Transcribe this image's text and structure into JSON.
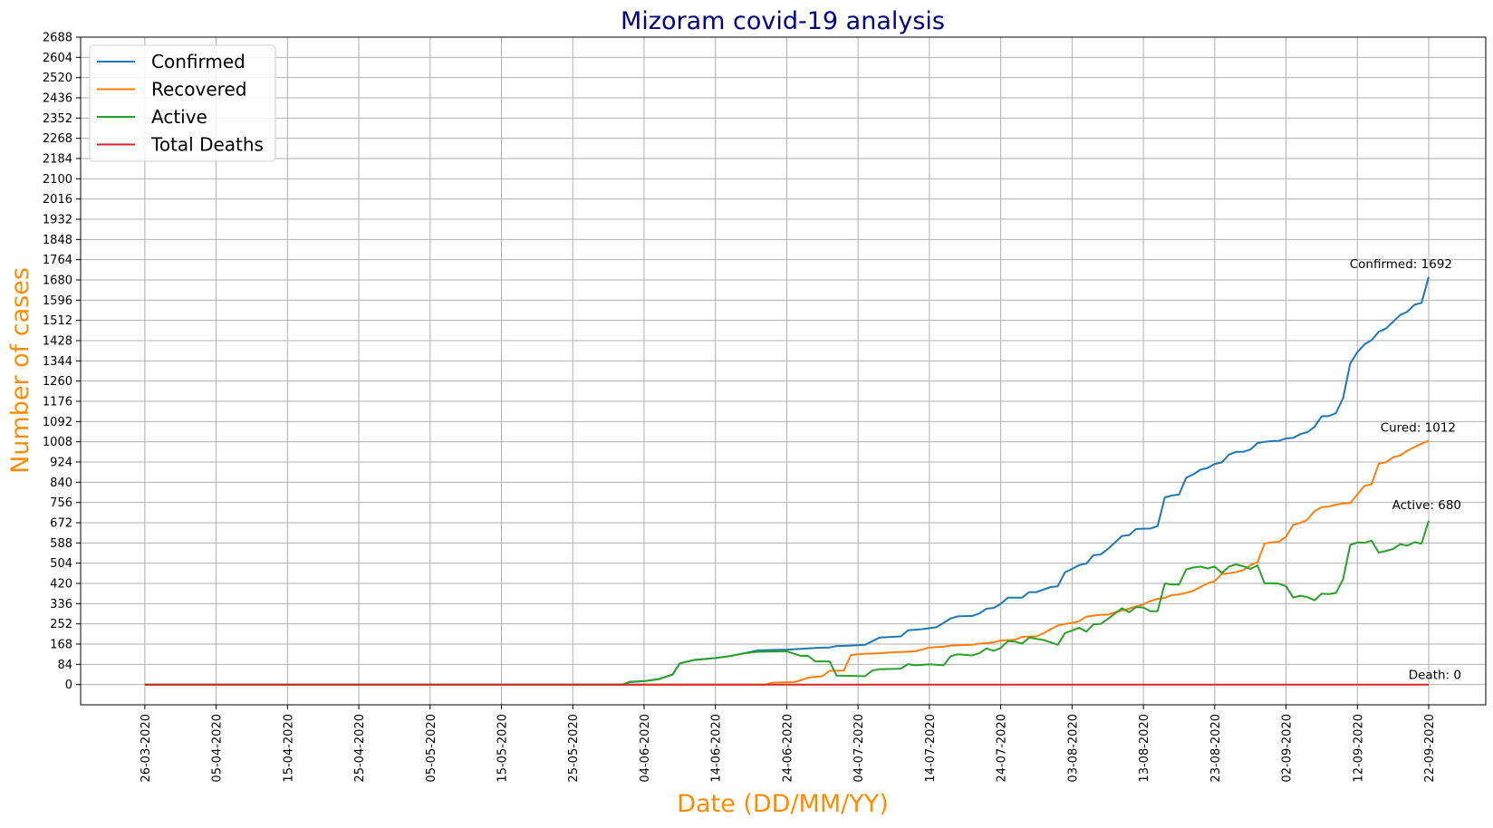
{
  "chart_data": {
    "type": "line",
    "title": "Mizoram covid-19 analysis",
    "xlabel": "Date (DD/MM/YY)",
    "ylabel": "Number of cases",
    "x_start": "26-03-2020",
    "x_end": "22-09-2020",
    "xlim": [
      "17-03-2020",
      "30-09-2020"
    ],
    "x_ticks": [
      "26-03-2020",
      "05-04-2020",
      "15-04-2020",
      "25-04-2020",
      "05-05-2020",
      "15-05-2020",
      "25-05-2020",
      "04-06-2020",
      "14-06-2020",
      "24-06-2020",
      "04-07-2020",
      "14-07-2020",
      "24-07-2020",
      "03-08-2020",
      "13-08-2020",
      "23-08-2020",
      "02-09-2020",
      "12-09-2020",
      "22-09-2020"
    ],
    "y_ticks": [
      0,
      84,
      168,
      252,
      336,
      420,
      504,
      588,
      672,
      756,
      840,
      924,
      1008,
      1092,
      1176,
      1260,
      1344,
      1428,
      1512,
      1596,
      1680,
      1764,
      1848,
      1932,
      2016,
      2100,
      2184,
      2268,
      2352,
      2436,
      2520,
      2604,
      2688
    ],
    "ylim": [
      -84,
      2688
    ],
    "grid": true,
    "legend_position": "upper-left",
    "series": [
      {
        "name": "Confirmed",
        "color": "#1f77b4",
        "points": [
          [
            "26-03-2020",
            0
          ],
          [
            "01-06-2020",
            0
          ],
          [
            "02-06-2020",
            10
          ],
          [
            "04-06-2020",
            14
          ],
          [
            "06-06-2020",
            22
          ],
          [
            "08-06-2020",
            42
          ],
          [
            "09-06-2020",
            88
          ],
          [
            "11-06-2020",
            102
          ],
          [
            "14-06-2020",
            110
          ],
          [
            "16-06-2020",
            118
          ],
          [
            "18-06-2020",
            130
          ],
          [
            "20-06-2020",
            142
          ],
          [
            "24-06-2020",
            145
          ],
          [
            "26-06-2020",
            148
          ],
          [
            "28-06-2020",
            152
          ],
          [
            "30-06-2020",
            154
          ],
          [
            "01-07-2020",
            160
          ],
          [
            "03-07-2020",
            162
          ],
          [
            "05-07-2020",
            165
          ],
          [
            "06-07-2020",
            180
          ],
          [
            "07-07-2020",
            195
          ],
          [
            "10-07-2020",
            200
          ],
          [
            "11-07-2020",
            225
          ],
          [
            "13-07-2020",
            230
          ],
          [
            "15-07-2020",
            238
          ],
          [
            "17-07-2020",
            275
          ],
          [
            "18-07-2020",
            283
          ],
          [
            "20-07-2020",
            285
          ],
          [
            "21-07-2020",
            295
          ],
          [
            "22-07-2020",
            315
          ],
          [
            "23-07-2020",
            318
          ],
          [
            "24-07-2020",
            335
          ],
          [
            "25-07-2020",
            361
          ],
          [
            "27-07-2020",
            361
          ],
          [
            "28-07-2020",
            384
          ],
          [
            "29-07-2020",
            384
          ],
          [
            "31-07-2020",
            405
          ],
          [
            "01-08-2020",
            408
          ],
          [
            "02-08-2020",
            466
          ],
          [
            "03-08-2020",
            480
          ],
          [
            "04-08-2020",
            496
          ],
          [
            "05-08-2020",
            502
          ],
          [
            "06-08-2020",
            537
          ],
          [
            "07-08-2020",
            540
          ],
          [
            "08-08-2020",
            562
          ],
          [
            "10-08-2020",
            617
          ],
          [
            "11-08-2020",
            620
          ],
          [
            "12-08-2020",
            646
          ],
          [
            "14-08-2020",
            648
          ],
          [
            "15-08-2020",
            658
          ],
          [
            "16-08-2020",
            777
          ],
          [
            "17-08-2020",
            785
          ],
          [
            "18-08-2020",
            789
          ],
          [
            "19-08-2020",
            859
          ],
          [
            "20-08-2020",
            873
          ],
          [
            "21-08-2020",
            892
          ],
          [
            "22-08-2020",
            899
          ],
          [
            "23-08-2020",
            916
          ],
          [
            "24-08-2020",
            922
          ],
          [
            "25-08-2020",
            955
          ],
          [
            "26-08-2020",
            966
          ],
          [
            "27-08-2020",
            966
          ],
          [
            "28-08-2020",
            976
          ],
          [
            "29-08-2020",
            1003
          ],
          [
            "30-08-2020",
            1008
          ],
          [
            "31-08-2020",
            1011
          ],
          [
            "01-09-2020",
            1012
          ],
          [
            "02-09-2020",
            1022
          ],
          [
            "03-09-2020",
            1024
          ],
          [
            "04-09-2020",
            1040
          ],
          [
            "05-09-2020",
            1048
          ],
          [
            "06-09-2020",
            1070
          ],
          [
            "07-09-2020",
            1114
          ],
          [
            "08-09-2020",
            1115
          ],
          [
            "09-09-2020",
            1127
          ],
          [
            "10-09-2020",
            1189
          ],
          [
            "11-09-2020",
            1333
          ],
          [
            "12-09-2020",
            1380
          ],
          [
            "13-09-2020",
            1413
          ],
          [
            "14-09-2020",
            1430
          ],
          [
            "15-09-2020",
            1465
          ],
          [
            "16-09-2020",
            1478
          ],
          [
            "17-09-2020",
            1506
          ],
          [
            "18-09-2020",
            1534
          ],
          [
            "19-09-2020",
            1548
          ],
          [
            "20-09-2020",
            1577
          ],
          [
            "21-09-2020",
            1585
          ],
          [
            "22-09-2020",
            1692
          ]
        ]
      },
      {
        "name": "Recovered",
        "color": "#ff7f0e",
        "points": [
          [
            "26-03-2020",
            0
          ],
          [
            "21-06-2020",
            0
          ],
          [
            "22-06-2020",
            8
          ],
          [
            "25-06-2020",
            10
          ],
          [
            "26-06-2020",
            18
          ],
          [
            "27-06-2020",
            29
          ],
          [
            "29-06-2020",
            35
          ],
          [
            "30-06-2020",
            57
          ],
          [
            "02-07-2020",
            58
          ],
          [
            "03-07-2020",
            123
          ],
          [
            "05-07-2020",
            128
          ],
          [
            "07-07-2020",
            130
          ],
          [
            "09-07-2020",
            134
          ],
          [
            "12-07-2020",
            138
          ],
          [
            "14-07-2020",
            154
          ],
          [
            "16-07-2020",
            157
          ],
          [
            "17-07-2020",
            162
          ],
          [
            "20-07-2020",
            165
          ],
          [
            "21-07-2020",
            170
          ],
          [
            "22-07-2020",
            172
          ],
          [
            "23-07-2020",
            175
          ],
          [
            "24-07-2020",
            183
          ],
          [
            "26-07-2020",
            186
          ],
          [
            "27-07-2020",
            198
          ],
          [
            "29-07-2020",
            200
          ],
          [
            "30-07-2020",
            213
          ],
          [
            "31-07-2020",
            230
          ],
          [
            "01-08-2020",
            245
          ],
          [
            "02-08-2020",
            252
          ],
          [
            "03-08-2020",
            256
          ],
          [
            "04-08-2020",
            263
          ],
          [
            "05-08-2020",
            282
          ],
          [
            "06-08-2020",
            286
          ],
          [
            "07-08-2020",
            290
          ],
          [
            "08-08-2020",
            290
          ],
          [
            "09-08-2020",
            300
          ],
          [
            "11-08-2020",
            315
          ],
          [
            "12-08-2020",
            325
          ],
          [
            "13-08-2020",
            333
          ],
          [
            "14-08-2020",
            347
          ],
          [
            "15-08-2020",
            356
          ],
          [
            "16-08-2020",
            360
          ],
          [
            "17-08-2020",
            372
          ],
          [
            "18-08-2020",
            374
          ],
          [
            "19-08-2020",
            381
          ],
          [
            "20-08-2020",
            390
          ],
          [
            "21-08-2020",
            405
          ],
          [
            "22-08-2020",
            420
          ],
          [
            "23-08-2020",
            429
          ],
          [
            "24-08-2020",
            459
          ],
          [
            "25-08-2020",
            462
          ],
          [
            "26-08-2020",
            467
          ],
          [
            "27-08-2020",
            475
          ],
          [
            "28-08-2020",
            496
          ],
          [
            "29-08-2020",
            508
          ],
          [
            "30-08-2020",
            586
          ],
          [
            "31-08-2020",
            590
          ],
          [
            "01-09-2020",
            593
          ],
          [
            "02-09-2020",
            614
          ],
          [
            "03-09-2020",
            663
          ],
          [
            "04-09-2020",
            671
          ],
          [
            "05-09-2020",
            685
          ],
          [
            "06-09-2020",
            720
          ],
          [
            "07-09-2020",
            737
          ],
          [
            "08-09-2020",
            739
          ],
          [
            "09-09-2020",
            747
          ],
          [
            "10-09-2020",
            752
          ],
          [
            "11-09-2020",
            753
          ],
          [
            "12-09-2020",
            790
          ],
          [
            "13-09-2020",
            825
          ],
          [
            "14-09-2020",
            832
          ],
          [
            "15-09-2020",
            917
          ],
          [
            "16-09-2020",
            923
          ],
          [
            "17-09-2020",
            943
          ],
          [
            "18-09-2020",
            951
          ],
          [
            "19-09-2020",
            971
          ],
          [
            "20-09-2020",
            986
          ],
          [
            "21-09-2020",
            1000
          ],
          [
            "22-09-2020",
            1012
          ]
        ]
      },
      {
        "name": "Active",
        "color": "#2ca02c",
        "points": [
          [
            "26-03-2020",
            0
          ],
          [
            "01-06-2020",
            0
          ],
          [
            "02-06-2020",
            12
          ],
          [
            "04-06-2020",
            14
          ],
          [
            "06-06-2020",
            22
          ],
          [
            "08-06-2020",
            42
          ],
          [
            "09-06-2020",
            88
          ],
          [
            "11-06-2020",
            102
          ],
          [
            "14-06-2020",
            110
          ],
          [
            "16-06-2020",
            118
          ],
          [
            "18-06-2020",
            130
          ],
          [
            "20-06-2020",
            136
          ],
          [
            "24-06-2020",
            138
          ],
          [
            "25-06-2020",
            128
          ],
          [
            "26-06-2020",
            119
          ],
          [
            "27-06-2020",
            119
          ],
          [
            "28-06-2020",
            96
          ],
          [
            "30-06-2020",
            96
          ],
          [
            "01-07-2020",
            37
          ],
          [
            "05-07-2020",
            35
          ],
          [
            "06-07-2020",
            58
          ],
          [
            "07-07-2020",
            64
          ],
          [
            "10-07-2020",
            66
          ],
          [
            "11-07-2020",
            85
          ],
          [
            "12-07-2020",
            80
          ],
          [
            "14-07-2020",
            84
          ],
          [
            "16-07-2020",
            80
          ],
          [
            "17-07-2020",
            118
          ],
          [
            "18-07-2020",
            126
          ],
          [
            "20-07-2020",
            121
          ],
          [
            "21-07-2020",
            130
          ],
          [
            "22-07-2020",
            150
          ],
          [
            "23-07-2020",
            140
          ],
          [
            "24-07-2020",
            152
          ],
          [
            "25-07-2020",
            180
          ],
          [
            "26-07-2020",
            178
          ],
          [
            "27-07-2020",
            170
          ],
          [
            "28-07-2020",
            195
          ],
          [
            "29-07-2020",
            190
          ],
          [
            "30-07-2020",
            185
          ],
          [
            "31-07-2020",
            175
          ],
          [
            "01-08-2020",
            165
          ],
          [
            "02-08-2020",
            214
          ],
          [
            "03-08-2020",
            224
          ],
          [
            "04-08-2020",
            236
          ],
          [
            "05-08-2020",
            220
          ],
          [
            "06-08-2020",
            250
          ],
          [
            "07-08-2020",
            252
          ],
          [
            "08-08-2020",
            272
          ],
          [
            "10-08-2020",
            317
          ],
          [
            "11-08-2020",
            300
          ],
          [
            "12-08-2020",
            322
          ],
          [
            "13-08-2020",
            320
          ],
          [
            "14-08-2020",
            304
          ],
          [
            "15-08-2020",
            305
          ],
          [
            "16-08-2020",
            420
          ],
          [
            "17-08-2020",
            415
          ],
          [
            "18-08-2020",
            415
          ],
          [
            "19-08-2020",
            478
          ],
          [
            "20-08-2020",
            486
          ],
          [
            "21-08-2020",
            490
          ],
          [
            "22-08-2020",
            482
          ],
          [
            "23-08-2020",
            490
          ],
          [
            "24-08-2020",
            463
          ],
          [
            "25-08-2020",
            490
          ],
          [
            "26-08-2020",
            499
          ],
          [
            "27-08-2020",
            491
          ],
          [
            "28-08-2020",
            480
          ],
          [
            "29-08-2020",
            495
          ],
          [
            "30-08-2020",
            420
          ],
          [
            "31-08-2020",
            421
          ],
          [
            "01-09-2020",
            419
          ],
          [
            "02-09-2020",
            408
          ],
          [
            "03-09-2020",
            361
          ],
          [
            "04-09-2020",
            369
          ],
          [
            "05-09-2020",
            363
          ],
          [
            "06-09-2020",
            350
          ],
          [
            "07-09-2020",
            377
          ],
          [
            "08-09-2020",
            376
          ],
          [
            "09-09-2020",
            380
          ],
          [
            "10-09-2020",
            437
          ],
          [
            "11-09-2020",
            580
          ],
          [
            "12-09-2020",
            590
          ],
          [
            "13-09-2020",
            588
          ],
          [
            "14-09-2020",
            598
          ],
          [
            "15-09-2020",
            548
          ],
          [
            "16-09-2020",
            555
          ],
          [
            "17-09-2020",
            563
          ],
          [
            "18-09-2020",
            583
          ],
          [
            "19-09-2020",
            577
          ],
          [
            "20-09-2020",
            591
          ],
          [
            "21-09-2020",
            585
          ],
          [
            "22-09-2020",
            680
          ]
        ]
      },
      {
        "name": "Total Deaths",
        "color": "#d62728",
        "points": [
          [
            "26-03-2020",
            0
          ],
          [
            "22-09-2020",
            0
          ]
        ]
      }
    ],
    "annotations": [
      {
        "text": "Confirmed: 1692",
        "x": "22-09-2020",
        "y": 1692,
        "anchor": "end",
        "dx": 26,
        "dy": -10
      },
      {
        "text": "Cured: 1012",
        "x": "22-09-2020",
        "y": 1012,
        "anchor": "end",
        "dx": 30,
        "dy": -10
      },
      {
        "text": "Active: 680",
        "x": "22-09-2020",
        "y": 680,
        "anchor": "end",
        "dx": 36,
        "dy": -13
      },
      {
        "text": "Death: 0",
        "x": "22-09-2020",
        "y": 0,
        "anchor": "end",
        "dx": 36,
        "dy": -6
      }
    ]
  }
}
